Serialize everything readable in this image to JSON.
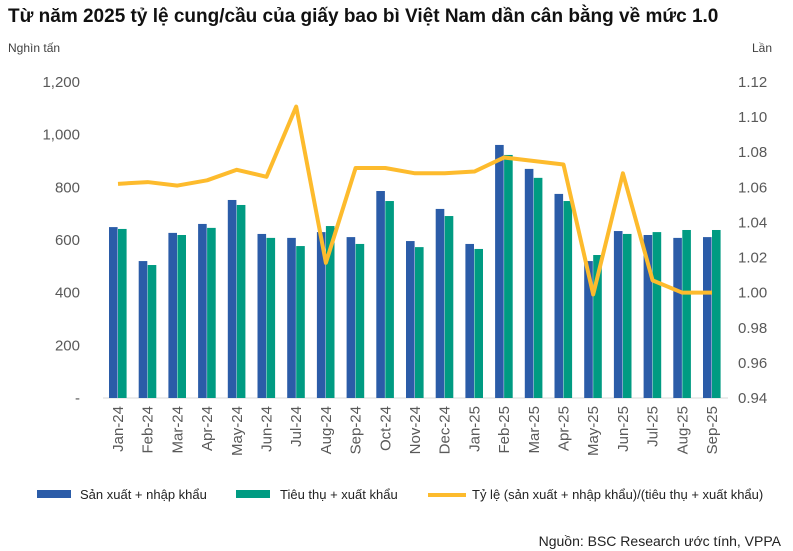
{
  "chart_data": {
    "type": "bar+line",
    "title": "Từ năm 2025 tỷ lệ cung/cầu của giấy bao bì Việt Nam dần cân bằng về mức 1.0",
    "ylabel": "Nghìn tấn",
    "y2label": "Lần",
    "ylim": [
      0,
      1200
    ],
    "y2lim": [
      0.94,
      1.12
    ],
    "yticks": [
      "-",
      "200",
      "400",
      "600",
      "800",
      "1,000",
      "1,200"
    ],
    "y2ticks": [
      "0.94",
      "0.96",
      "0.98",
      "1.00",
      "1.02",
      "1.04",
      "1.06",
      "1.08",
      "1.10",
      "1.12"
    ],
    "categories": [
      "Jan-24",
      "Feb-24",
      "Mar-24",
      "Apr-24",
      "May-24",
      "Jun-24",
      "Jul-24",
      "Aug-24",
      "Sep-24",
      "Oct-24",
      "Nov-24",
      "Dec-24",
      "Jan-25",
      "Feb-25",
      "Mar-25",
      "Apr-25",
      "May-25",
      "Jun-25",
      "Jul-25",
      "Aug-25",
      "Sep-25"
    ],
    "series": [
      {
        "name": "Sản xuất + nhập khẩu",
        "type": "bar",
        "color": "#2b5ca8",
        "values": [
          649,
          520,
          627,
          661,
          752,
          623,
          608,
          630,
          611,
          786,
          596,
          718,
          585,
          961,
          870,
          775,
          520,
          634,
          619,
          608,
          611
        ]
      },
      {
        "name": "Tiêu thụ + xuất khẩu",
        "type": "bar",
        "color": "#009b82",
        "values": [
          642,
          505,
          619,
          646,
          733,
          608,
          577,
          653,
          585,
          748,
          573,
          691,
          566,
          923,
          836,
          748,
          543,
          623,
          630,
          638,
          638
        ]
      },
      {
        "name": "Tỷ lệ (sản xuất + nhập khẩu)/(tiêu thụ + xuất khẩu)",
        "type": "line",
        "axis": "right",
        "color": "#fdbb2d",
        "values": [
          1.062,
          1.063,
          1.061,
          1.064,
          1.07,
          1.066,
          1.106,
          1.017,
          1.071,
          1.071,
          1.068,
          1.068,
          1.069,
          1.077,
          1.075,
          1.073,
          0.999,
          1.068,
          1.007,
          1.0,
          1.0
        ]
      }
    ],
    "legend": "bottom"
  },
  "source": "Nguồn: BSC Research ước tính, VPPA"
}
